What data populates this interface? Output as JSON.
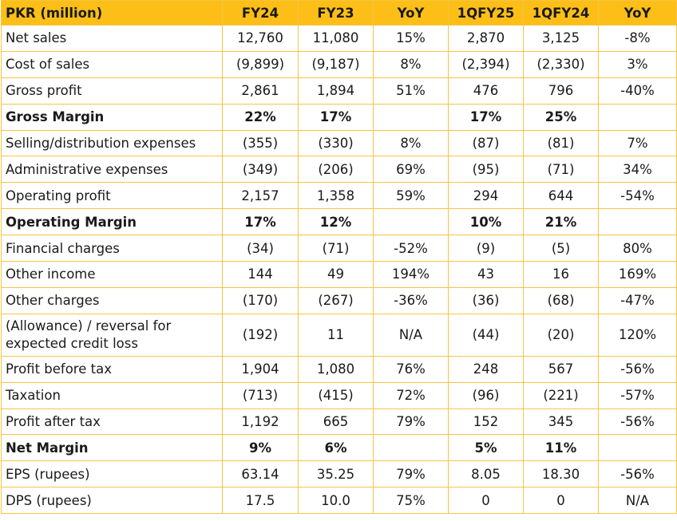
{
  "headers": [
    "PKR (million)",
    "FY24",
    "FY23",
    "YoY",
    "1QFY25",
    "1QFY24",
    "YoY"
  ],
  "rows": [
    {
      "label": "Net sales",
      "cells": [
        "12,760",
        "11,080",
        "15%",
        "2,870",
        "3,125",
        "-8%"
      ]
    },
    {
      "label": "Cost of sales",
      "cells": [
        "(9,899)",
        "(9,187)",
        "8%",
        "(2,394)",
        "(2,330)",
        "3%"
      ]
    },
    {
      "label": "Gross profit",
      "cells": [
        "2,861",
        "1,894",
        "51%",
        "476",
        "796",
        "-40%"
      ]
    },
    {
      "label": "Gross Margin",
      "cells": [
        "22%",
        "17%",
        "",
        "17%",
        "25%",
        ""
      ]
    },
    {
      "label": "Selling/distribution expenses",
      "cells": [
        "(355)",
        "(330)",
        "8%",
        "(87)",
        "(81)",
        "7%"
      ]
    },
    {
      "label": "Administrative expenses",
      "cells": [
        "(349)",
        "(206)",
        "69%",
        "(95)",
        "(71)",
        "34%"
      ]
    },
    {
      "label": "Operating profit",
      "cells": [
        "2,157",
        "1,358",
        "59%",
        "294",
        "644",
        "-54%"
      ]
    },
    {
      "label": "Operating Margin",
      "cells": [
        "17%",
        "12%",
        "",
        "10%",
        "21%",
        ""
      ]
    },
    {
      "label": "Financial charges",
      "cells": [
        "(34)",
        "(71)",
        "-52%",
        "(9)",
        "(5)",
        "80%"
      ]
    },
    {
      "label": "Other income",
      "cells": [
        "144",
        "49",
        "194%",
        "43",
        "16",
        "169%"
      ]
    },
    {
      "label": "Other charges",
      "cells": [
        "(170)",
        "(267)",
        "-36%",
        "(36)",
        "(68)",
        "-47%"
      ]
    },
    {
      "label": "(Allowance) / reversal for expected credit loss",
      "cells": [
        "(192)",
        "11",
        "N/A",
        "(44)",
        "(20)",
        "120%"
      ]
    },
    {
      "label": "Profit before tax",
      "cells": [
        "1,904",
        "1,080",
        "76%",
        "248",
        "567",
        "-56%"
      ]
    },
    {
      "label": "Taxation",
      "cells": [
        "(713)",
        "(415)",
        "72%",
        "(96)",
        "(221)",
        "-57%"
      ]
    },
    {
      "label": "Profit after tax",
      "cells": [
        "1,192",
        "665",
        "79%",
        "152",
        "345",
        "-56%"
      ]
    },
    {
      "label": "Net Margin",
      "cells": [
        "9%",
        "6%",
        "",
        "5%",
        "11%",
        ""
      ]
    },
    {
      "label": "EPS (rupees)",
      "cells": [
        "63.14",
        "35.25",
        "79%",
        "8.05",
        "18.30",
        "-56%"
      ]
    },
    {
      "label": "DPS (rupees)",
      "cells": [
        "17.5",
        "10.0",
        "75%",
        "0",
        "0",
        "N/A"
      ]
    }
  ]
}
